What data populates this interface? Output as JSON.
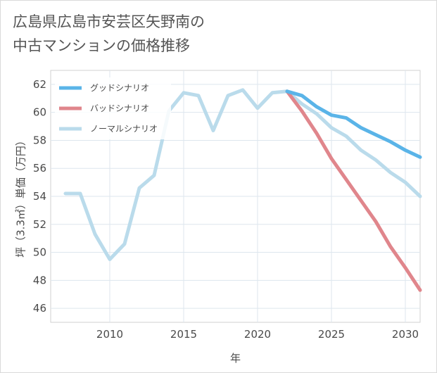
{
  "chart_data": {
    "type": "line",
    "title": [
      "広島県広島市安芸区矢野南の",
      "中古マンションの価格推移"
    ],
    "xlabel": "年",
    "ylabel": "坪（3.3㎡）単価（万円）",
    "xlim": [
      2006,
      2031
    ],
    "ylim": [
      45,
      63
    ],
    "xticks": [
      2010,
      2015,
      2020,
      2025,
      2030
    ],
    "yticks": [
      46,
      48,
      50,
      52,
      54,
      56,
      58,
      60,
      62
    ],
    "grid": true,
    "legend_position": "top-left",
    "series": [
      {
        "name": "ノーマルシナリオ",
        "color": "#badbeb",
        "x": [
          2007,
          2008,
          2009,
          2010,
          2011,
          2012,
          2013,
          2014,
          2015,
          2016,
          2017,
          2018,
          2019,
          2020,
          2021,
          2022,
          2023,
          2024,
          2025,
          2026,
          2027,
          2028,
          2029,
          2030,
          2031
        ],
        "values": [
          54.2,
          54.2,
          51.3,
          49.5,
          50.6,
          54.6,
          55.5,
          60.1,
          61.4,
          61.2,
          58.7,
          61.2,
          61.6,
          60.3,
          61.4,
          61.5,
          60.6,
          59.9,
          58.9,
          58.3,
          57.3,
          56.6,
          55.7,
          55.0,
          54.0
        ]
      },
      {
        "name": "バッドシナリオ",
        "color": "#e0868c",
        "x": [
          2022,
          2023,
          2024,
          2025,
          2026,
          2027,
          2028,
          2029,
          2030,
          2031
        ],
        "values": [
          61.5,
          60.1,
          58.5,
          56.7,
          55.2,
          53.7,
          52.2,
          50.4,
          48.9,
          47.3
        ]
      },
      {
        "name": "グッドシナリオ",
        "color": "#5ab4e8",
        "x": [
          2022,
          2023,
          2024,
          2025,
          2026,
          2027,
          2028,
          2029,
          2030,
          2031
        ],
        "values": [
          61.5,
          61.2,
          60.4,
          59.8,
          59.6,
          58.9,
          58.4,
          57.9,
          57.3,
          56.8
        ]
      }
    ],
    "legend": [
      "グッドシナリオ",
      "バッドシナリオ",
      "ノーマルシナリオ"
    ]
  }
}
